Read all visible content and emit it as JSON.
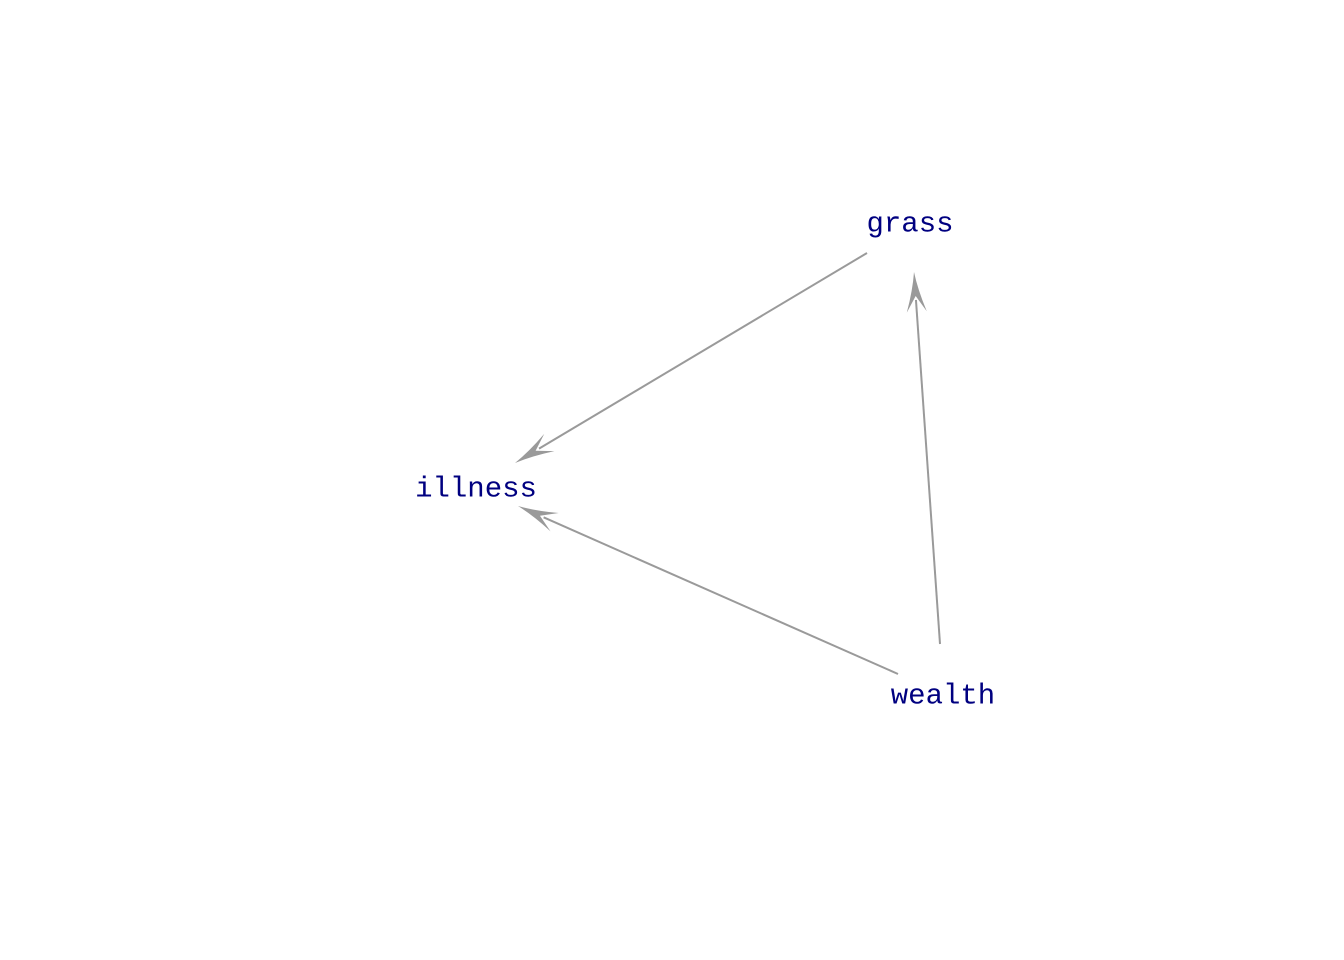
{
  "diagram": {
    "type": "directed-acyclic-graph",
    "colors": {
      "node_text": "#000080",
      "edge": "#9a9a9a",
      "background": "#ffffff"
    },
    "nodes": [
      {
        "id": "grass",
        "label": "grass"
      },
      {
        "id": "illness",
        "label": "illness"
      },
      {
        "id": "wealth",
        "label": "wealth"
      }
    ],
    "edges": [
      {
        "from": "grass",
        "to": "illness"
      },
      {
        "from": "wealth",
        "to": "illness"
      },
      {
        "from": "wealth",
        "to": "grass"
      }
    ]
  }
}
